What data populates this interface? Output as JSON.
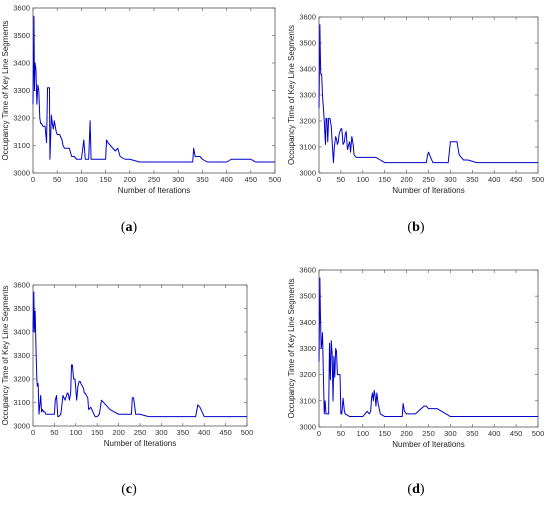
{
  "panels": [
    {
      "caption_open": "(",
      "caption_letter": "a",
      "caption_close": ")",
      "chart_data": {
        "type": "line",
        "xlabel": "Number of Iterations",
        "ylabel": "Occupancy Time of Key Line Segments",
        "xlim": [
          0,
          500
        ],
        "ylim": [
          3000,
          3600
        ],
        "xticks": [
          0,
          50,
          100,
          150,
          200,
          250,
          300,
          350,
          400,
          450,
          500
        ],
        "yticks": [
          3000,
          3100,
          3200,
          3300,
          3400,
          3500,
          3600
        ],
        "grid": false,
        "series": [
          {
            "color": "#0000cc",
            "x": [
              0,
              2,
              3,
              4,
              6,
              8,
              10,
              12,
              14,
              16,
              18,
              20,
              22,
              25,
              28,
              30,
              32,
              34,
              35,
              38,
              40,
              42,
              44,
              46,
              48,
              50,
              55,
              60,
              62,
              65,
              70,
              75,
              80,
              85,
              90,
              95,
              100,
              105,
              108,
              110,
              112,
              115,
              118,
              120,
              125,
              130,
              140,
              150,
              152,
              155,
              160,
              170,
              175,
              180,
              190,
              200,
              220,
              250,
              280,
              300,
              320,
              330,
              332,
              335,
              340,
              345,
              350,
              360,
              380,
              400,
              410,
              420,
              450,
              460,
              480,
              500
            ],
            "y": [
              3250,
              3570,
              3300,
              3400,
              3380,
              3250,
              3320,
              3300,
              3200,
              3180,
              3180,
              3170,
              3170,
              3170,
              3110,
              3310,
              3310,
              3310,
              3050,
              3210,
              3180,
              3160,
              3190,
              3170,
              3150,
              3140,
              3140,
              3120,
              3100,
              3090,
              3090,
              3090,
              3060,
              3060,
              3050,
              3050,
              3050,
              3120,
              3050,
              3050,
              3050,
              3050,
              3190,
              3050,
              3050,
              3050,
              3050,
              3050,
              3120,
              3110,
              3100,
              3080,
              3090,
              3060,
              3050,
              3050,
              3040,
              3040,
              3040,
              3040,
              3040,
              3040,
              3090,
              3060,
              3060,
              3060,
              3050,
              3040,
              3040,
              3040,
              3050,
              3050,
              3050,
              3040,
              3040,
              3040
            ]
          }
        ]
      }
    },
    {
      "caption_open": "(",
      "caption_letter": "b",
      "caption_close": ")",
      "chart_data": {
        "type": "line",
        "xlabel": "Number of Iterations",
        "ylabel": "Occupancy Time of Key Line Segments",
        "xlim": [
          0,
          500
        ],
        "ylim": [
          3000,
          3600
        ],
        "xticks": [
          0,
          50,
          100,
          150,
          200,
          250,
          300,
          350,
          400,
          450,
          500
        ],
        "yticks": [
          3000,
          3100,
          3200,
          3300,
          3400,
          3500,
          3600
        ],
        "grid": false,
        "series": [
          {
            "color": "#0000cc",
            "x": [
              0,
              2,
              3,
              4,
              6,
              8,
              10,
              12,
              14,
              15,
              16,
              18,
              20,
              22,
              25,
              28,
              30,
              33,
              35,
              38,
              40,
              42,
              44,
              46,
              48,
              50,
              52,
              55,
              58,
              60,
              62,
              65,
              68,
              70,
              72,
              75,
              78,
              80,
              85,
              90,
              100,
              120,
              130,
              140,
              150,
              200,
              240,
              245,
              248,
              250,
              255,
              260,
              280,
              290,
              295,
              300,
              310,
              315,
              320,
              330,
              340,
              360,
              380,
              400,
              450,
              500
            ],
            "y": [
              3250,
              3570,
              3460,
              3380,
              3380,
              3300,
              3250,
              3200,
              3130,
              3110,
              3210,
              3210,
              3120,
              3210,
              3210,
              3180,
              3120,
              3040,
              3100,
              3140,
              3130,
              3110,
              3120,
              3150,
              3160,
              3170,
              3170,
              3110,
              3120,
              3150,
              3160,
              3090,
              3110,
              3120,
              3080,
              3140,
              3110,
              3070,
              3060,
              3060,
              3060,
              3060,
              3060,
              3050,
              3040,
              3040,
              3040,
              3040,
              3070,
              3080,
              3060,
              3040,
              3040,
              3040,
              3040,
              3120,
              3120,
              3120,
              3070,
              3050,
              3050,
              3040,
              3040,
              3040,
              3040,
              3040
            ]
          }
        ]
      }
    },
    {
      "caption_open": "(",
      "caption_letter": "c",
      "caption_close": ")",
      "chart_data": {
        "type": "line",
        "xlabel": "Number of Iterations",
        "ylabel": "Occupancy Time of Key Line Segments",
        "xlim": [
          0,
          500
        ],
        "ylim": [
          3000,
          3600
        ],
        "xticks": [
          0,
          50,
          100,
          150,
          200,
          250,
          300,
          350,
          400,
          450,
          500
        ],
        "yticks": [
          3000,
          3100,
          3200,
          3300,
          3400,
          3500,
          3600
        ],
        "grid": false,
        "series": [
          {
            "color": "#0000cc",
            "x": [
              0,
              2,
              3,
              5,
              7,
              9,
              10,
              12,
              14,
              16,
              18,
              20,
              22,
              25,
              28,
              30,
              35,
              40,
              45,
              50,
              52,
              55,
              58,
              60,
              65,
              70,
              75,
              80,
              82,
              85,
              88,
              90,
              92,
              95,
              98,
              100,
              102,
              105,
              108,
              110,
              112,
              115,
              118,
              120,
              122,
              125,
              128,
              130,
              135,
              140,
              145,
              150,
              155,
              160,
              165,
              170,
              175,
              180,
              190,
              200,
              210,
              220,
              230,
              232,
              235,
              240,
              250,
              270,
              300,
              330,
              360,
              380,
              385,
              390,
              395,
              400,
              420,
              450,
              500
            ],
            "y": [
              3400,
              3570,
              3400,
              3490,
              3330,
              3200,
              3170,
              3180,
              3050,
              3090,
              3130,
              3060,
              3070,
              3060,
              3060,
              3050,
              3050,
              3050,
              3050,
              3050,
              3110,
              3130,
              3040,
              3040,
              3050,
              3130,
              3110,
              3140,
              3140,
              3110,
              3140,
              3260,
              3260,
              3200,
              3200,
              3160,
              3110,
              3170,
              3190,
              3190,
              3180,
              3170,
              3160,
              3140,
              3140,
              3130,
              3120,
              3070,
              3080,
              3060,
              3040,
              3040,
              3050,
              3110,
              3100,
              3090,
              3080,
              3070,
              3060,
              3050,
              3050,
              3050,
              3050,
              3120,
              3120,
              3050,
              3050,
              3040,
              3040,
              3040,
              3040,
              3040,
              3090,
              3080,
              3060,
              3040,
              3040,
              3040,
              3040
            ]
          }
        ]
      }
    },
    {
      "caption_open": "(",
      "caption_letter": "d",
      "caption_close": ")",
      "chart_data": {
        "type": "line",
        "xlabel": "Number of Iterations",
        "ylabel": "Occupancy Time of Key Line Segments",
        "xlim": [
          0,
          500
        ],
        "ylim": [
          3000,
          3600
        ],
        "xticks": [
          0,
          50,
          100,
          150,
          200,
          250,
          300,
          350,
          400,
          450,
          500
        ],
        "yticks": [
          3000,
          3100,
          3200,
          3300,
          3400,
          3500,
          3600
        ],
        "grid": false,
        "series": [
          {
            "color": "#0000cc",
            "x": [
              0,
              2,
              3,
              5,
              7,
              8,
              10,
              12,
              14,
              16,
              18,
              20,
              22,
              24,
              26,
              28,
              30,
              32,
              34,
              36,
              38,
              40,
              42,
              45,
              48,
              50,
              52,
              55,
              58,
              60,
              70,
              80,
              100,
              110,
              115,
              118,
              120,
              122,
              124,
              126,
              128,
              130,
              132,
              135,
              140,
              150,
              180,
              190,
              192,
              195,
              200,
              220,
              240,
              245,
              250,
              260,
              270,
              280,
              290,
              300,
              350,
              400,
              450,
              500
            ],
            "y": [
              3250,
              3570,
              3450,
              3300,
              3330,
              3360,
              3200,
              3050,
              3100,
              3050,
              3050,
              3050,
              3050,
              3320,
              3180,
              3330,
              3280,
              3100,
              3270,
              3190,
              3300,
              3290,
              3200,
              3200,
              3200,
              3050,
              3050,
              3110,
              3060,
              3050,
              3040,
              3040,
              3040,
              3060,
              3050,
              3060,
              3110,
              3130,
              3100,
              3140,
              3120,
              3080,
              3130,
              3090,
              3050,
              3040,
              3040,
              3040,
              3090,
              3060,
              3050,
              3050,
              3080,
              3080,
              3070,
              3070,
              3070,
              3060,
              3050,
              3040,
              3040,
              3040,
              3040,
              3040
            ]
          }
        ]
      }
    }
  ]
}
